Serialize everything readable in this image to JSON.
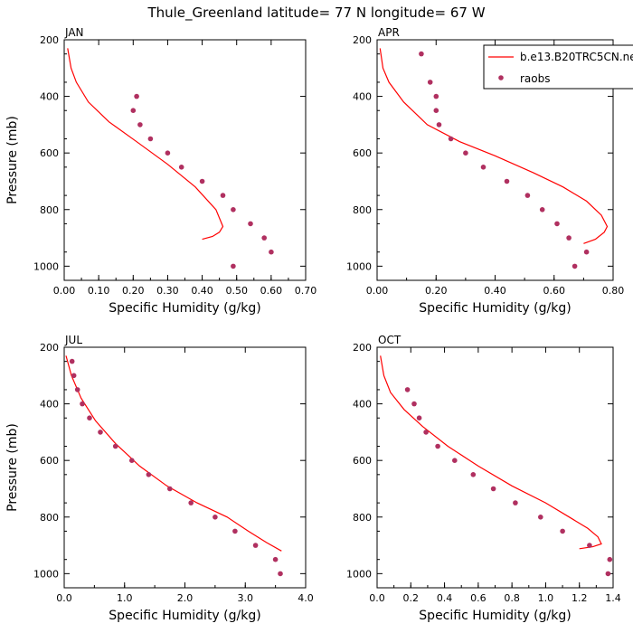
{
  "figure": {
    "title": "Thule_Greenland  latitude= 77 N longitude= 67 W"
  },
  "legend": {
    "model_label": "b.e13.B20TRC5CN.ne",
    "obs_label": "raobs"
  },
  "colors": {
    "model_line": "#ff0000",
    "obs_marker": "#b03060"
  },
  "chart_data": [
    {
      "type": "line",
      "panel": "JAN",
      "xlabel": "Specific Humidity (g/kg)",
      "ylabel": "Pressure (mb)",
      "xlim": [
        0,
        0.7
      ],
      "ylim": [
        1050,
        200
      ],
      "y_inverted": true,
      "xticks": [
        "0.00",
        "0.10",
        "0.20",
        "0.30",
        "0.40",
        "0.50",
        "0.60",
        "0.70"
      ],
      "xtick_values": [
        0,
        0.1,
        0.2,
        0.3,
        0.4,
        0.5,
        0.6,
        0.7
      ],
      "yticks": [
        "200",
        "400",
        "600",
        "800",
        "1000"
      ],
      "ytick_values": [
        200,
        400,
        600,
        800,
        1000
      ],
      "series": [
        {
          "name": "b.e13.B20TRC5CN.ne",
          "kind": "line",
          "points": [
            [
              0.01,
              230
            ],
            [
              0.02,
              300
            ],
            [
              0.035,
              350
            ],
            [
              0.07,
              420
            ],
            [
              0.13,
              490
            ],
            [
              0.21,
              560
            ],
            [
              0.3,
              640
            ],
            [
              0.38,
              720
            ],
            [
              0.44,
              800
            ],
            [
              0.46,
              860
            ],
            [
              0.45,
              880
            ],
            [
              0.43,
              895
            ],
            [
              0.4,
              905
            ]
          ]
        },
        {
          "name": "raobs",
          "kind": "scatter",
          "points": [
            [
              0.21,
              400
            ],
            [
              0.2,
              450
            ],
            [
              0.22,
              500
            ],
            [
              0.25,
              550
            ],
            [
              0.3,
              600
            ],
            [
              0.34,
              650
            ],
            [
              0.4,
              700
            ],
            [
              0.46,
              750
            ],
            [
              0.49,
              800
            ],
            [
              0.54,
              850
            ],
            [
              0.58,
              900
            ],
            [
              0.6,
              950
            ],
            [
              0.49,
              1000
            ]
          ]
        }
      ]
    },
    {
      "type": "line",
      "panel": "APR",
      "xlabel": "Specific Humidity (g/kg)",
      "ylabel": "",
      "xlim": [
        0,
        0.8
      ],
      "ylim": [
        1050,
        200
      ],
      "y_inverted": true,
      "xticks": [
        "0.00",
        "0.20",
        "0.40",
        "0.60",
        "0.80"
      ],
      "xtick_values": [
        0,
        0.2,
        0.4,
        0.6,
        0.8
      ],
      "yticks": [
        "200",
        "400",
        "600",
        "800",
        "1000"
      ],
      "ytick_values": [
        200,
        400,
        600,
        800,
        1000
      ],
      "series": [
        {
          "name": "b.e13.B20TRC5CN.ne",
          "kind": "line",
          "points": [
            [
              0.01,
              230
            ],
            [
              0.02,
              300
            ],
            [
              0.04,
              350
            ],
            [
              0.09,
              420
            ],
            [
              0.17,
              500
            ],
            [
              0.28,
              560
            ],
            [
              0.4,
              610
            ],
            [
              0.53,
              670
            ],
            [
              0.63,
              720
            ],
            [
              0.71,
              770
            ],
            [
              0.76,
              820
            ],
            [
              0.78,
              860
            ],
            [
              0.77,
              880
            ],
            [
              0.74,
              905
            ],
            [
              0.7,
              920
            ]
          ]
        },
        {
          "name": "raobs",
          "kind": "scatter",
          "points": [
            [
              0.15,
              250
            ],
            [
              0.18,
              350
            ],
            [
              0.2,
              400
            ],
            [
              0.2,
              450
            ],
            [
              0.21,
              500
            ],
            [
              0.25,
              550
            ],
            [
              0.3,
              600
            ],
            [
              0.36,
              650
            ],
            [
              0.44,
              700
            ],
            [
              0.51,
              750
            ],
            [
              0.56,
              800
            ],
            [
              0.61,
              850
            ],
            [
              0.65,
              900
            ],
            [
              0.71,
              950
            ],
            [
              0.67,
              1000
            ]
          ]
        }
      ]
    },
    {
      "type": "line",
      "panel": "JUL",
      "xlabel": "Specific Humidity (g/kg)",
      "ylabel": "Pressure (mb)",
      "xlim": [
        0,
        4.0
      ],
      "ylim": [
        1050,
        200
      ],
      "y_inverted": true,
      "xticks": [
        "0.0",
        "1.0",
        "2.0",
        "3.0",
        "4.0"
      ],
      "xtick_values": [
        0,
        1,
        2,
        3,
        4
      ],
      "yticks": [
        "200",
        "400",
        "600",
        "800",
        "1000"
      ],
      "ytick_values": [
        200,
        400,
        600,
        800,
        1000
      ],
      "series": [
        {
          "name": "b.e13.B20TRC5CN.ne",
          "kind": "line",
          "points": [
            [
              0.03,
              230
            ],
            [
              0.12,
              300
            ],
            [
              0.28,
              380
            ],
            [
              0.52,
              460
            ],
            [
              0.85,
              540
            ],
            [
              1.25,
              620
            ],
            [
              1.7,
              690
            ],
            [
              2.2,
              750
            ],
            [
              2.7,
              800
            ],
            [
              3.05,
              850
            ],
            [
              3.35,
              890
            ],
            [
              3.6,
              920
            ]
          ]
        },
        {
          "name": "raobs",
          "kind": "scatter",
          "points": [
            [
              0.13,
              250
            ],
            [
              0.16,
              300
            ],
            [
              0.22,
              350
            ],
            [
              0.3,
              400
            ],
            [
              0.42,
              450
            ],
            [
              0.6,
              500
            ],
            [
              0.85,
              550
            ],
            [
              1.12,
              600
            ],
            [
              1.4,
              650
            ],
            [
              1.75,
              700
            ],
            [
              2.1,
              750
            ],
            [
              2.5,
              800
            ],
            [
              2.83,
              850
            ],
            [
              3.17,
              900
            ],
            [
              3.5,
              950
            ],
            [
              3.58,
              1000
            ]
          ]
        }
      ]
    },
    {
      "type": "line",
      "panel": "OCT",
      "xlabel": "Specific Humidity (g/kg)",
      "ylabel": "",
      "xlim": [
        0,
        1.4
      ],
      "ylim": [
        1050,
        200
      ],
      "y_inverted": true,
      "xticks": [
        "0.0",
        "0.2",
        "0.4",
        "0.6",
        "0.8",
        "1.0",
        "1.2",
        "1.4"
      ],
      "xtick_values": [
        0,
        0.2,
        0.4,
        0.6,
        0.8,
        1.0,
        1.2,
        1.4
      ],
      "yticks": [
        "200",
        "400",
        "600",
        "800",
        "1000"
      ],
      "ytick_values": [
        200,
        400,
        600,
        800,
        1000
      ],
      "series": [
        {
          "name": "b.e13.B20TRC5CN.ne",
          "kind": "line",
          "points": [
            [
              0.02,
              230
            ],
            [
              0.04,
              300
            ],
            [
              0.08,
              360
            ],
            [
              0.16,
              420
            ],
            [
              0.27,
              480
            ],
            [
              0.42,
              550
            ],
            [
              0.6,
              620
            ],
            [
              0.8,
              690
            ],
            [
              1.0,
              750
            ],
            [
              1.14,
              800
            ],
            [
              1.25,
              840
            ],
            [
              1.31,
              870
            ],
            [
              1.33,
              895
            ],
            [
              1.28,
              905
            ],
            [
              1.2,
              912
            ]
          ]
        },
        {
          "name": "raobs",
          "kind": "scatter",
          "points": [
            [
              0.18,
              350
            ],
            [
              0.22,
              400
            ],
            [
              0.25,
              450
            ],
            [
              0.29,
              500
            ],
            [
              0.36,
              550
            ],
            [
              0.46,
              600
            ],
            [
              0.57,
              650
            ],
            [
              0.69,
              700
            ],
            [
              0.82,
              750
            ],
            [
              0.97,
              800
            ],
            [
              1.1,
              850
            ],
            [
              1.26,
              900
            ],
            [
              1.38,
              950
            ],
            [
              1.37,
              1000
            ]
          ]
        }
      ]
    }
  ]
}
